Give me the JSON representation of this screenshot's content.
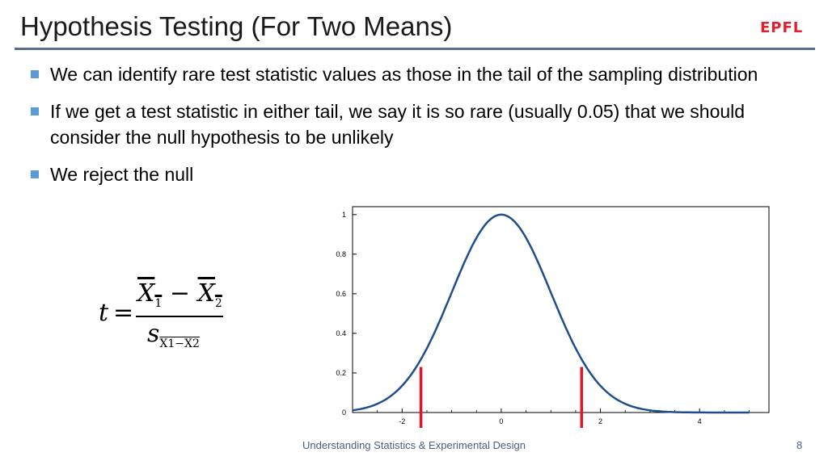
{
  "slide": {
    "title": "Hypothesis Testing (For Two Means)",
    "logo_text": "EPFL",
    "bullets": [
      "We can identify rare test statistic values as those in the tail of the sampling distribution",
      "If we get a test statistic in either tail, we say it is so rare (usually 0.05) that we should consider the null hypothesis to be unlikely",
      "We reject the null"
    ],
    "footer": "Understanding Statistics & Experimental Design",
    "page_number": "8"
  },
  "formula": {
    "lhs": "t",
    "equals": "=",
    "numerator_a": "X",
    "numerator_a_sub": "1",
    "minus": "−",
    "numerator_b": "X",
    "numerator_b_sub": "2",
    "denominator": "s",
    "denominator_sub": "X1−X2"
  },
  "chart_data": {
    "type": "line",
    "xlim": [
      -3,
      5.4
    ],
    "ylim": [
      0,
      1.04
    ],
    "x_ticks": [
      -2,
      0,
      2,
      4
    ],
    "y_ticks": [
      0,
      0.2,
      0.4,
      0.6,
      0.8,
      1
    ],
    "x_tick_labels": [
      "-2",
      "0",
      "2",
      "4"
    ],
    "y_tick_labels": [
      "0",
      "0.2",
      "0.4",
      "0.6",
      "0.8",
      "1"
    ],
    "curve_color": "#1f4e8c",
    "critical_line_color": "#e3132b",
    "critical_values": [
      -1.62,
      1.62
    ],
    "series": [
      {
        "x": [
          -3,
          -2.5,
          -2,
          -1.5,
          -1,
          -0.5,
          0,
          0.5,
          1,
          1.5,
          2,
          2.5,
          3,
          3.5,
          4,
          4.5,
          5
        ],
        "y": [
          0.011,
          0.044,
          0.135,
          0.325,
          0.607,
          0.882,
          1,
          0.882,
          0.607,
          0.325,
          0.135,
          0.044,
          0.011,
          0.002,
          0.0003,
          0,
          0
        ]
      }
    ]
  }
}
